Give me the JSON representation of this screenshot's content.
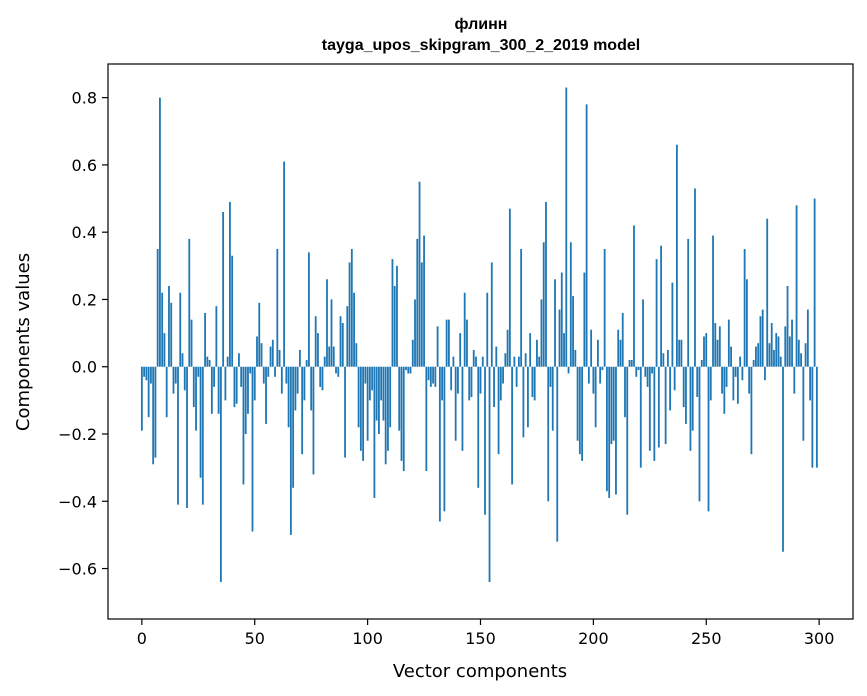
{
  "chart_data": {
    "type": "bar",
    "title": "флинн",
    "subtitle": "tayga_upos_skipgram_300_2_2019 model",
    "xlabel": "Vector components",
    "ylabel": "Components values",
    "xlim": [
      -15,
      315
    ],
    "ylim": [
      -0.75,
      0.9
    ],
    "xticks": [
      0,
      50,
      100,
      150,
      200,
      250,
      300
    ],
    "yticks": [
      -0.6,
      -0.4,
      -0.2,
      0.0,
      0.2,
      0.4,
      0.6,
      0.8
    ],
    "ytick_labels": [
      "−0.6",
      "−0.4",
      "−0.2",
      "0.0",
      "0.2",
      "0.4",
      "0.6",
      "0.8"
    ],
    "xtick_labels": [
      "0",
      "50",
      "100",
      "150",
      "200",
      "250",
      "300"
    ],
    "bar_color": "#1f77b4",
    "grid": false,
    "values": [
      -0.19,
      -0.03,
      -0.04,
      -0.15,
      -0.05,
      -0.29,
      -0.27,
      0.35,
      0.8,
      0.22,
      0.1,
      -0.15,
      0.24,
      0.19,
      -0.08,
      -0.05,
      -0.41,
      0.22,
      0.04,
      -0.07,
      -0.42,
      0.38,
      0.14,
      -0.12,
      -0.19,
      -0.03,
      -0.33,
      -0.41,
      0.16,
      0.03,
      0.02,
      -0.14,
      -0.06,
      0.18,
      -0.14,
      -0.64,
      0.46,
      -0.1,
      0.03,
      0.49,
      0.33,
      -0.12,
      -0.11,
      0.04,
      -0.06,
      -0.35,
      -0.2,
      -0.14,
      -0.02,
      -0.49,
      -0.1,
      0.09,
      0.19,
      0.07,
      -0.05,
      -0.17,
      -0.03,
      0.06,
      0.08,
      -0.03,
      0.35,
      0.05,
      -0.08,
      0.61,
      -0.05,
      -0.18,
      -0.5,
      -0.36,
      -0.13,
      -0.08,
      0.05,
      -0.26,
      -0.1,
      0.02,
      0.34,
      -0.13,
      -0.32,
      0.15,
      0.1,
      -0.06,
      -0.07,
      0.03,
      0.26,
      0.06,
      0.2,
      0.06,
      -0.02,
      -0.03,
      0.15,
      0.13,
      -0.27,
      0.18,
      0.31,
      0.35,
      0.22,
      0.07,
      -0.18,
      -0.25,
      -0.28,
      -0.05,
      -0.22,
      -0.1,
      -0.07,
      -0.39,
      -0.16,
      -0.2,
      -0.1,
      -0.16,
      -0.29,
      -0.25,
      -0.18,
      0.32,
      0.24,
      0.3,
      -0.19,
      -0.28,
      -0.31,
      -0.01,
      -0.02,
      -0.02,
      0.08,
      0.2,
      0.38,
      0.55,
      0.31,
      0.39,
      -0.31,
      -0.04,
      -0.06,
      -0.05,
      -0.06,
      0.12,
      -0.46,
      -0.1,
      -0.43,
      0.14,
      0.14,
      -0.07,
      0.03,
      -0.22,
      -0.08,
      0.1,
      -0.25,
      0.22,
      0.14,
      -0.1,
      -0.09,
      0.05,
      0.03,
      -0.36,
      -0.08,
      0.03,
      -0.44,
      0.22,
      -0.64,
      0.31,
      -0.12,
      0.06,
      -0.26,
      -0.1,
      -0.05,
      0.04,
      0.11,
      0.47,
      -0.35,
      0.03,
      -0.06,
      0.03,
      0.35,
      -0.21,
      0.04,
      -0.18,
      0.1,
      -0.09,
      -0.1,
      0.08,
      0.03,
      0.2,
      0.37,
      0.49,
      -0.4,
      -0.06,
      -0.19,
      0.26,
      -0.52,
      0.17,
      0.28,
      0.1,
      0.83,
      -0.02,
      0.37,
      0.21,
      0.05,
      -0.22,
      -0.26,
      -0.28,
      0.28,
      0.78,
      -0.05,
      0.11,
      -0.08,
      -0.18,
      0.08,
      -0.05,
      -0.01,
      0.35,
      -0.37,
      -0.39,
      -0.23,
      -0.22,
      -0.38,
      0.11,
      0.08,
      0.16,
      -0.15,
      -0.44,
      0.02,
      0.02,
      0.42,
      -0.03,
      -0.01,
      -0.3,
      0.2,
      -0.03,
      -0.06,
      -0.25,
      -0.02,
      -0.28,
      0.32,
      -0.24,
      0.36,
      0.04,
      -0.23,
      0.05,
      -0.13,
      0.25,
      -0.07,
      0.66,
      0.08,
      0.08,
      -0.12,
      -0.17,
      0.38,
      -0.25,
      -0.19,
      0.53,
      -0.09,
      -0.4,
      0.02,
      0.09,
      0.1,
      -0.43,
      -0.1,
      0.39,
      0.13,
      0.08,
      0.12,
      -0.08,
      -0.14,
      -0.06,
      0.14,
      0.06,
      -0.1,
      -0.03,
      -0.11,
      0.03,
      -0.04,
      0.35,
      0.26,
      -0.08,
      -0.26,
      0.02,
      0.06,
      0.07,
      0.15,
      0.17,
      -0.04,
      0.44,
      0.07,
      0.13,
      0.05,
      0.1,
      0.09,
      0.03,
      -0.55,
      0.12,
      0.24,
      0.09,
      0.14,
      -0.08,
      0.48,
      0.08,
      0.04,
      -0.22,
      0.07,
      0.17,
      -0.1,
      -0.3,
      0.5,
      -0.3
    ]
  }
}
